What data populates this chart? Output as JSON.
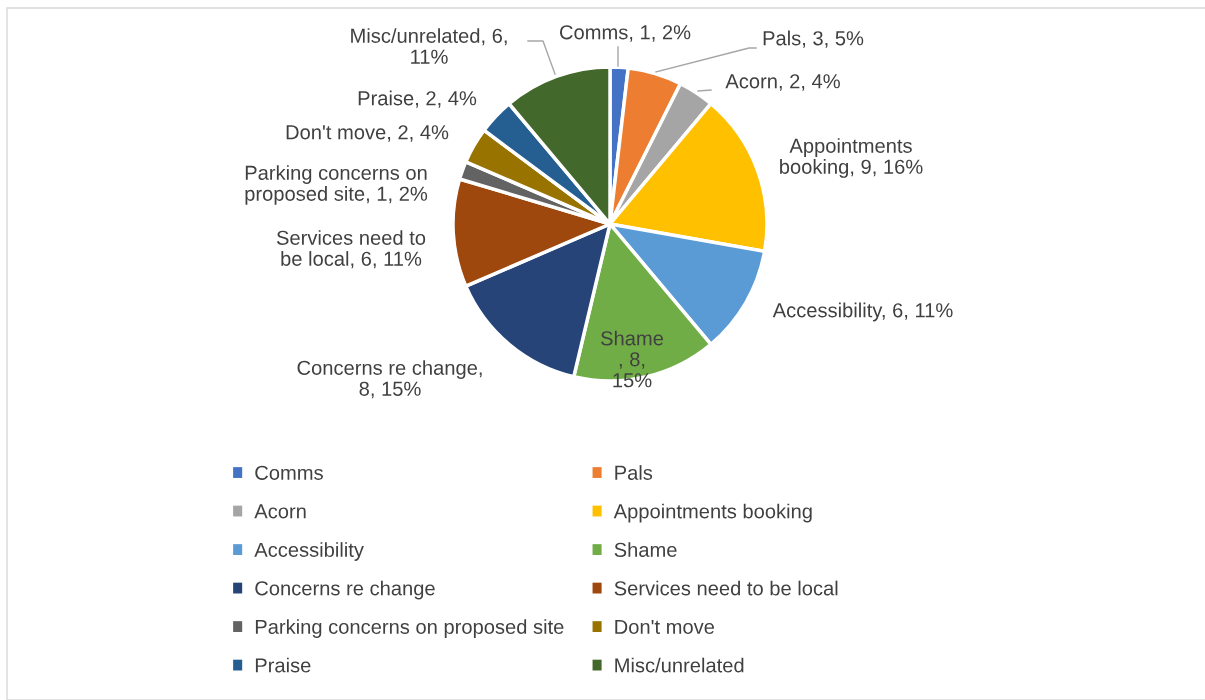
{
  "chart_data": {
    "type": "pie",
    "categories": [
      "Comms",
      "Pals",
      "Acorn",
      "Appointments booking",
      "Accessibility",
      "Shame",
      "Concerns re change",
      "Services need to be local",
      "Parking concerns on proposed site",
      "Don't move",
      "Praise",
      "Misc/unrelated"
    ],
    "values": [
      1,
      3,
      2,
      9,
      6,
      8,
      8,
      6,
      1,
      2,
      2,
      6
    ],
    "colors": [
      "#4472c4",
      "#ed7d31",
      "#a5a5a5",
      "#ffc000",
      "#5b9bd5",
      "#70ad47",
      "#264478",
      "#9e480e",
      "#636363",
      "#997300",
      "#255e91",
      "#43682b"
    ],
    "value_labels": [
      "Comms, 1, 2%",
      "Pals, 3, 5%",
      "Acorn, 2, 4%",
      "Appointments\nbooking, 9, 16%",
      "Accessibility, 6, 11%",
      "Shame\n, 8,\n15%",
      "Concerns re change,\n8, 15%",
      "Services need to\nbe local, 6, 11%",
      "Parking concerns on\nproposed site, 1, 2%",
      "Don't move, 2, 4%",
      "Praise, 2, 4%",
      "Misc/unrelated, 6,\n11%"
    ],
    "legend": "bottom"
  }
}
